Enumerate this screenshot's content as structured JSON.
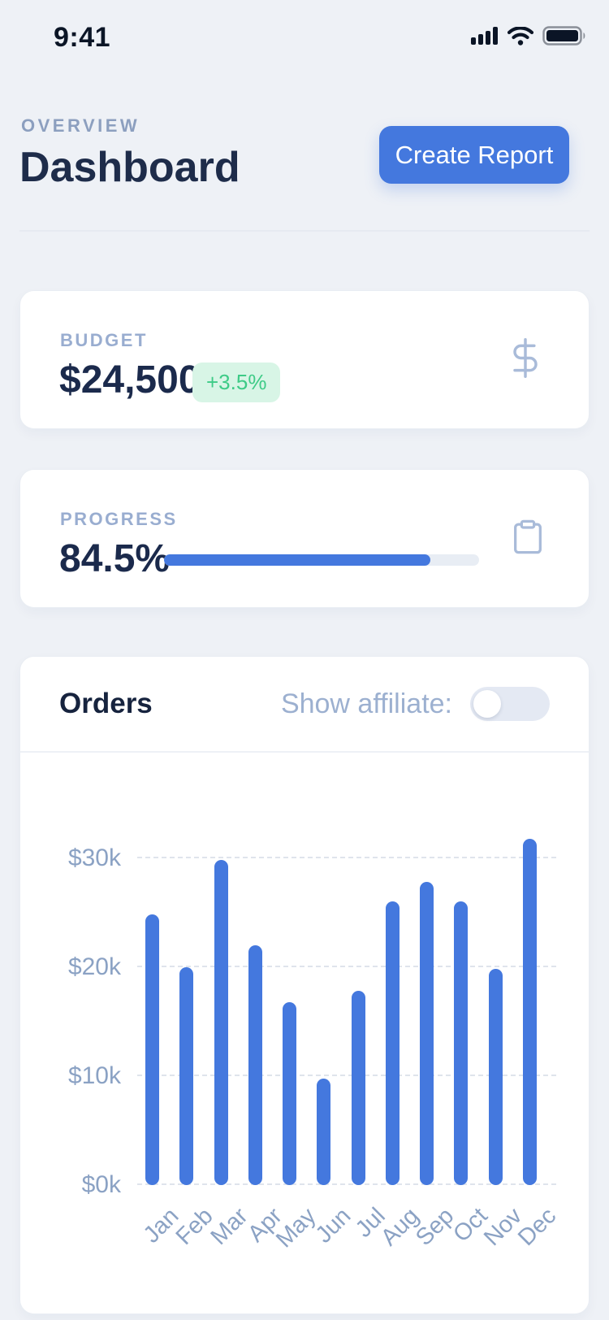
{
  "status_bar": {
    "time": "9:41"
  },
  "header": {
    "eyebrow": "OVERVIEW",
    "title": "Dashboard",
    "create_report_label": "Create Report"
  },
  "budget_card": {
    "label": "BUDGET",
    "value": "$24,500",
    "delta": "+3.5%",
    "icon": "dollar-sign"
  },
  "progress_card": {
    "label": "PROGRESS",
    "value": "84.5%",
    "percent": 84.5,
    "icon": "clipboard"
  },
  "orders_card": {
    "title": "Orders",
    "toggle_label": "Show affiliate:",
    "toggle_enabled": false
  },
  "colors": {
    "accent_blue": "#4478DE",
    "green_text": "#3ECB87",
    "green_bg": "#D8F5E6",
    "navy_text": "#1E2C4A",
    "muted_text": "#8C9FBF",
    "page_bg": "#EEF1F6",
    "progress_track": "#E8EDF4",
    "toggle_track": "#E4E9F3",
    "grid_line": "#DFE4EC"
  },
  "chart_data": {
    "type": "bar",
    "title": "Orders",
    "categories": [
      "Jan",
      "Feb",
      "Mar",
      "Apr",
      "May",
      "Jun",
      "Jul",
      "Aug",
      "Sep",
      "Oct",
      "Nov",
      "Dec"
    ],
    "values": [
      24800,
      20000,
      29800,
      22000,
      16800,
      9800,
      17800,
      26000,
      27800,
      26000,
      19800,
      31800
    ],
    "y_ticks": [
      {
        "label": "$30k",
        "value": 30000
      },
      {
        "label": "$20k",
        "value": 20000
      },
      {
        "label": "$10k",
        "value": 10000
      },
      {
        "label": "$0k",
        "value": 0
      }
    ],
    "ylim": [
      0,
      34000
    ],
    "xlabel": "",
    "ylabel": "",
    "bar_color": "#4478DE",
    "grid": "horizontal-dashed",
    "x_label_rotation": -45,
    "legend": "none"
  }
}
